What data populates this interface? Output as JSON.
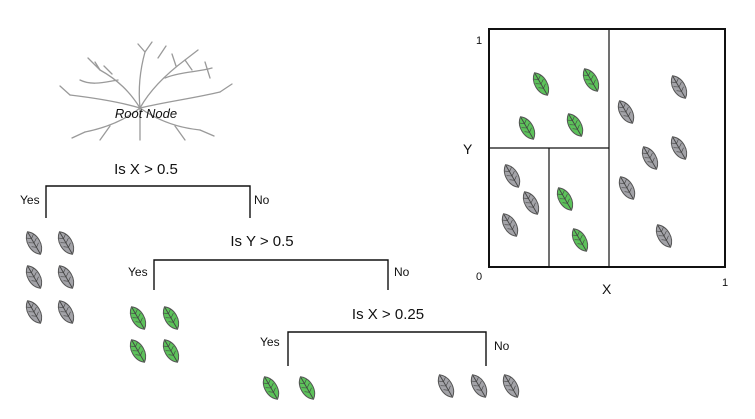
{
  "tree": {
    "root_label": "Root Node",
    "q1": "Is X > 0.5",
    "q2": "Is Y > 0.5",
    "q3": "Is X > 0.25",
    "yes": "Yes",
    "no": "No"
  },
  "plot": {
    "x_label": "X",
    "y_label": "Y",
    "x_min_label": "0",
    "x_max_label": "1",
    "y_max_label": "1"
  },
  "colors": {
    "green_leaf": "#5cc25a",
    "gray_leaf": "#a3a3a8"
  }
}
